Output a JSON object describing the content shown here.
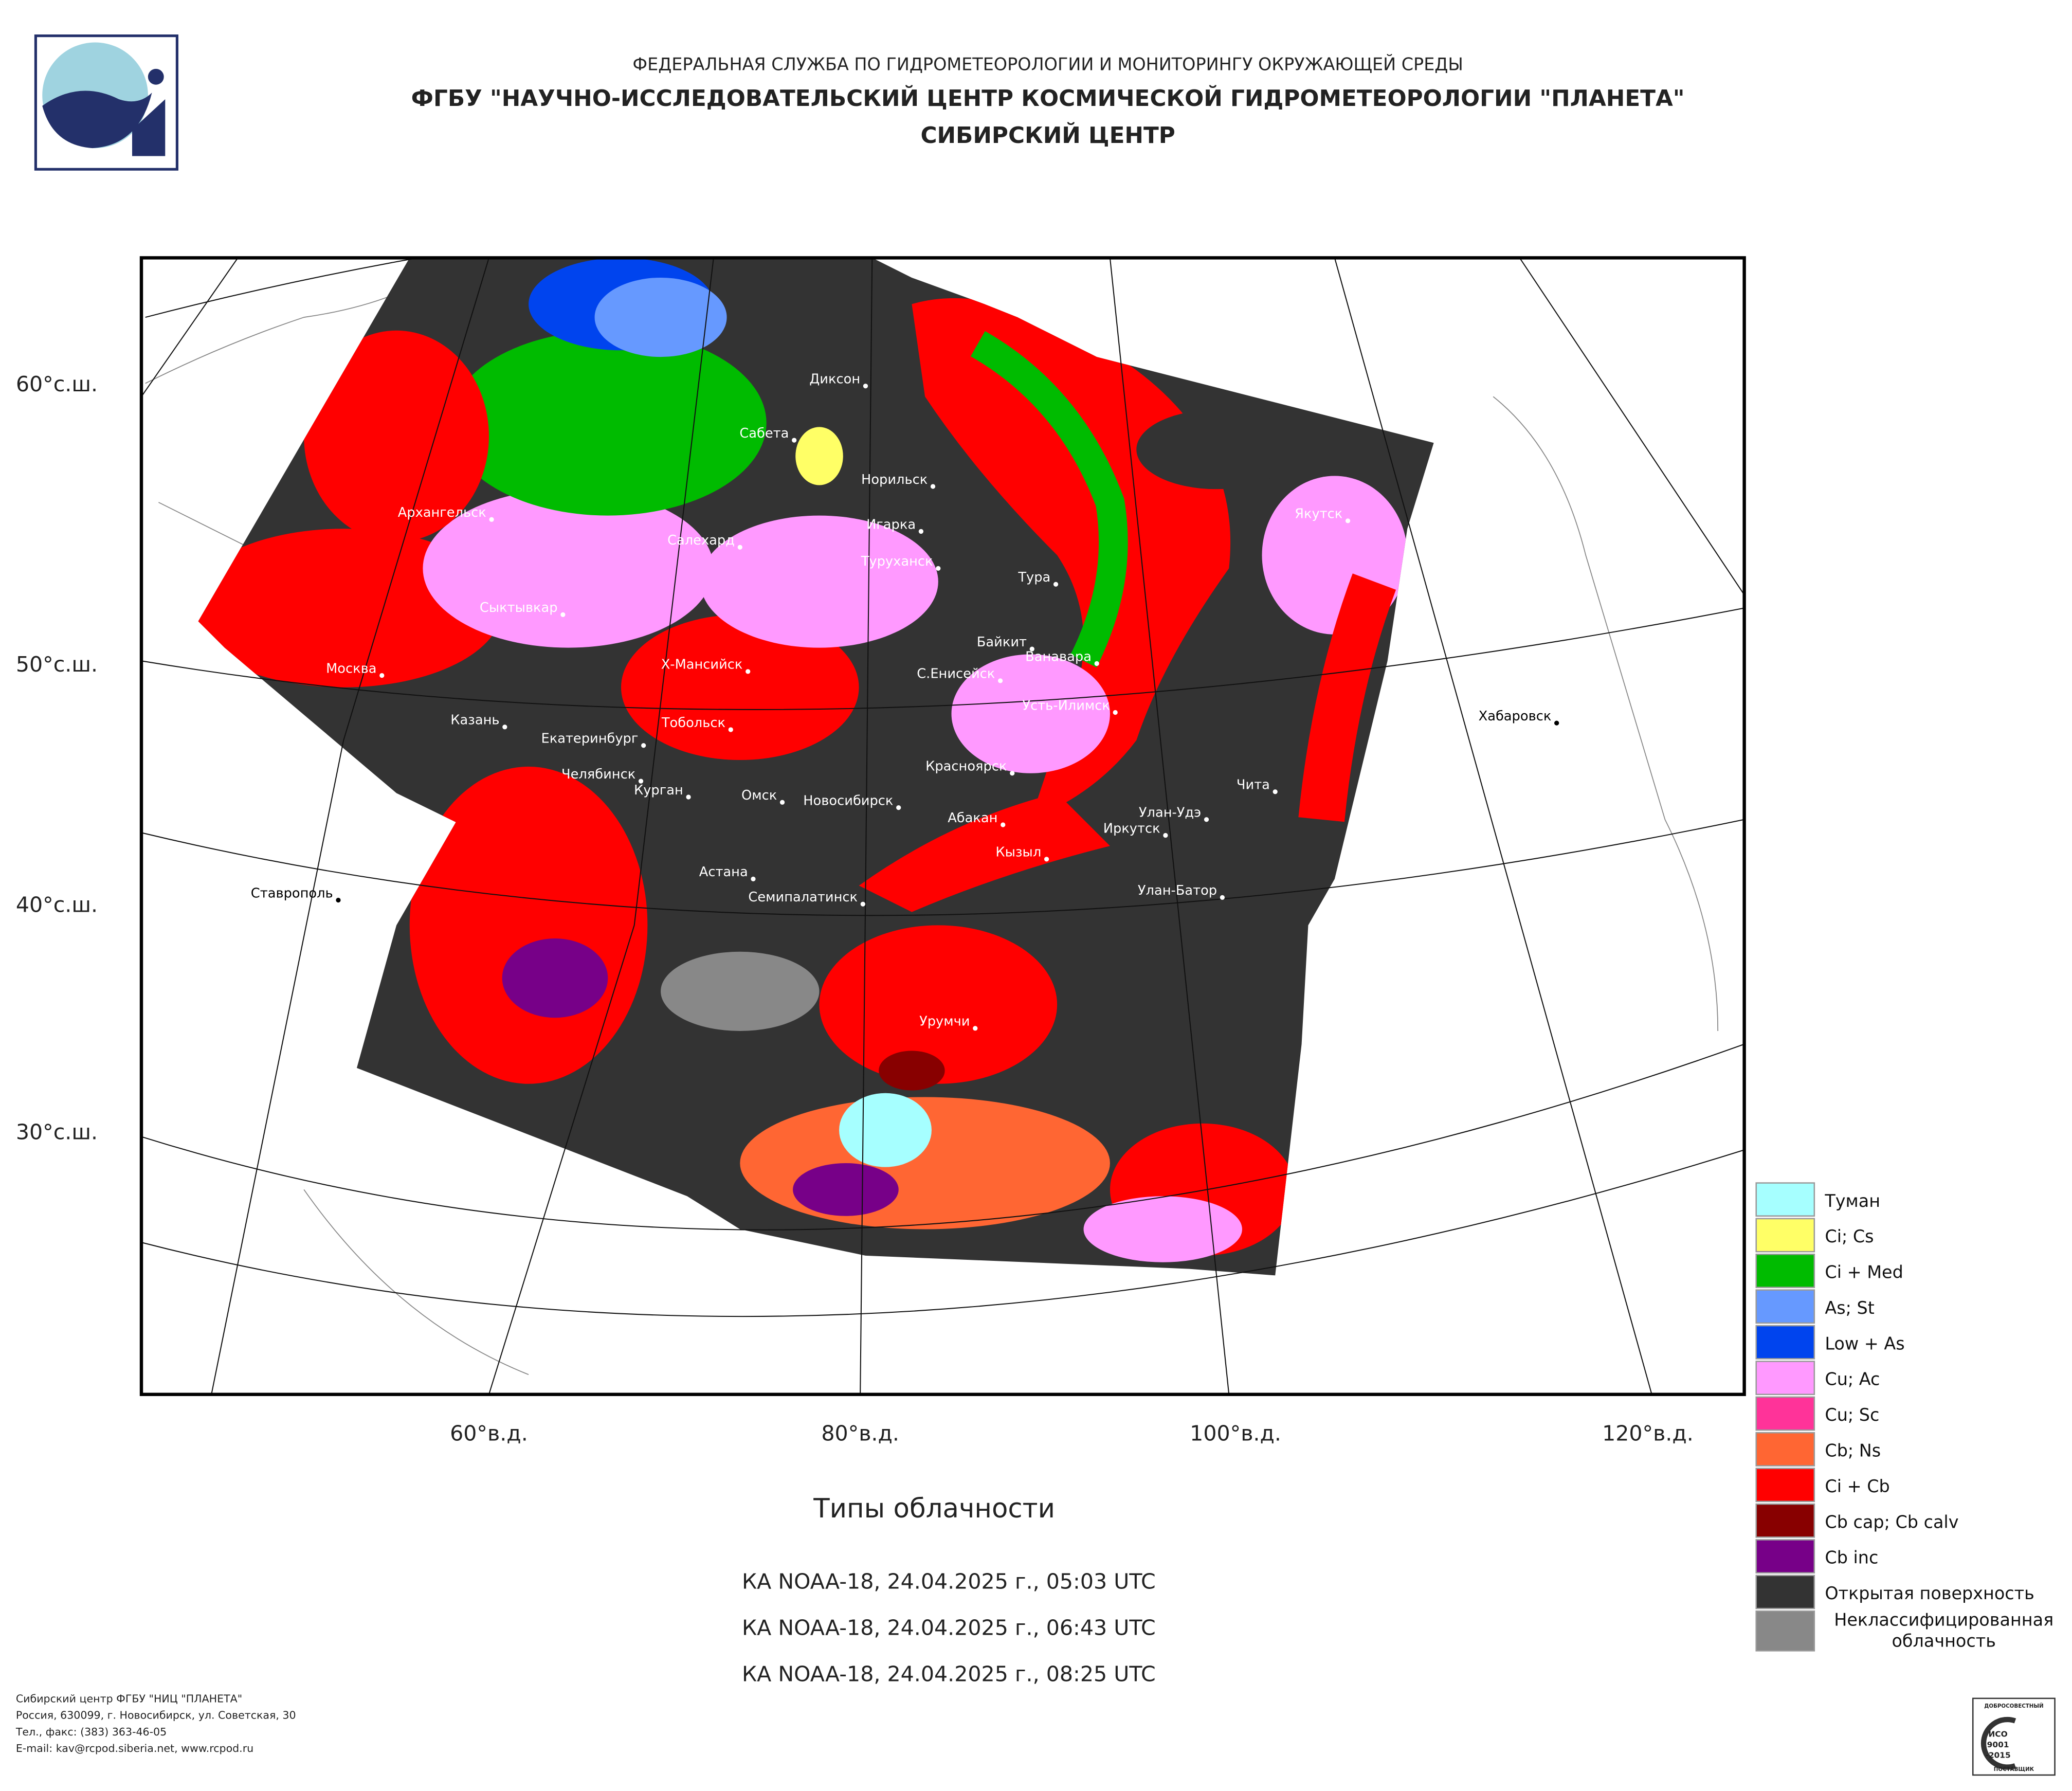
{
  "header": {
    "agency": "ФЕДЕРАЛЬНАЯ СЛУЖБА ПО ГИДРОМЕТЕОРОЛОГИИ И МОНИТОРИНГУ ОКРУЖАЮЩЕЙ СРЕДЫ",
    "center": "ФГБУ \"НАУЧНО-ИССЛЕДОВАТЕЛЬСКИЙ ЦЕНТР КОСМИЧЕСКОЙ ГИДРОМЕТЕОРОЛОГИИ \"ПЛАНЕТА\"",
    "branch": "СИБИРСКИЙ ЦЕНТР"
  },
  "map": {
    "lat_labels": [
      "60°с.ш.",
      "50°с.ш.",
      "40°с.ш.",
      "30°с.ш."
    ],
    "lon_labels": [
      "60°в.д.",
      "80°в.д.",
      "100°в.д.",
      "120°в.д."
    ],
    "cities": [
      "Диксон",
      "Сабета",
      "Норильск",
      "Архангельск",
      "Салехард",
      "Игарка",
      "Туруханск",
      "Тура",
      "Якутск",
      "Сыктывкар",
      "Байкит",
      "Ванавара",
      "Москва",
      "Х-Мансийск",
      "С.Енисейск",
      "Усть-Илимск",
      "Хабаровск",
      "Казань",
      "Тобольск",
      "Екатеринбург",
      "Челябинск",
      "Красноярск",
      "Чита",
      "Курган",
      "Омск",
      "Новосибирск",
      "Абакан",
      "Улан-Удэ",
      "Иркутск",
      "Кызыл",
      "Ставрополь",
      "Астана",
      "Семипалатинск",
      "Улан-Батор",
      "Урумчи"
    ]
  },
  "title": "Типы облачности",
  "passes": [
    "КА NOAA-18, 24.04.2025 г., 05:03 UTC",
    "КА NOAA-18, 24.04.2025 г., 06:43 UTC",
    "КА NOAA-18, 24.04.2025 г., 08:25 UTC"
  ],
  "legend": [
    {
      "label": "Туман",
      "color": "#a6ffff"
    },
    {
      "label": "Ci; Cs",
      "color": "#ffff66"
    },
    {
      "label": "Ci + Med",
      "color": "#00bb00"
    },
    {
      "label": "As; St",
      "color": "#6699ff"
    },
    {
      "label": "Low + As",
      "color": "#0044ee"
    },
    {
      "label": "Cu; Ac",
      "color": "#ff99ff"
    },
    {
      "label": "Cu; Sc",
      "color": "#ff3399"
    },
    {
      "label": "Cb; Ns",
      "color": "#ff6633"
    },
    {
      "label": "Ci + Cb",
      "color": "#ff0000"
    },
    {
      "label": "Cb cap; Cb calv",
      "color": "#880000"
    },
    {
      "label": "Cb inc",
      "color": "#770088"
    },
    {
      "label": "Открытая поверхность",
      "color": "#333333"
    },
    {
      "label": "Неклассифицированная облачность",
      "color": "#888888"
    }
  ],
  "footer": [
    "Сибирский центр ФГБУ \"НИЦ \"ПЛАНЕТА\"",
    "Россия, 630099, г. Новосибирск, ул. Советская, 30",
    "Тел., факс: (383) 363-46-05",
    "E-mail: kav@rcpod.siberia.net, www.rcpod.ru"
  ],
  "badge": [
    "ДОБРОСОВЕСТНЫЙ",
    "ИСО",
    "9001",
    "-2015",
    "ПОСТАВЩИК"
  ]
}
